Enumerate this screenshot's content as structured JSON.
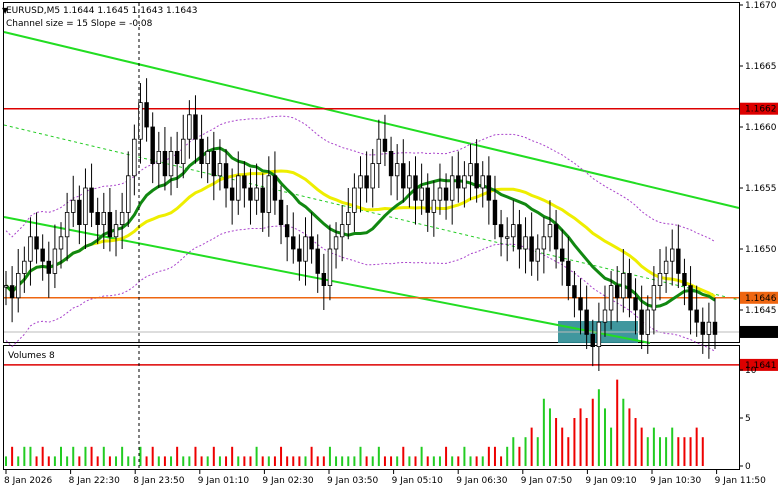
{
  "header": {
    "title": "EURUSD,M5  1.1644 1.1645 1.1643 1.1643",
    "indicator": "Channel size = 15 Slope = -0.08",
    "volumes_label": "Volumes 8"
  },
  "colors": {
    "bull_candle": "#ffffff",
    "bear_candle": "#000000",
    "channel": "#22dd22",
    "channel_mid": "#22cc22",
    "ma_fast": "#118811",
    "ma_slow": "#eeee00",
    "envelope": "#aa44cc",
    "resistance": "#dd0000",
    "support_level": "#ee6611",
    "zone": "#2b8c94",
    "volume_up": "#22cc22",
    "volume_down": "#ee0000"
  },
  "chart_data": {
    "type": "candlestick",
    "symbol": "EURUSD",
    "timeframe": "M5",
    "ylim": [
      1.164,
      1.167
    ],
    "y_ticks": [
      "1.1670",
      "1.1665",
      "1.1660",
      "1.1655",
      "1.1650",
      "1.1645"
    ],
    "x_ticks": [
      "8 Jan 2026",
      "8 Jan 22:30",
      "8 Jan 23:50",
      "9 Jan 01:10",
      "9 Jan 02:30",
      "9 Jan 03:50",
      "9 Jan 05:10",
      "9 Jan 06:30",
      "9 Jan 07:50",
      "9 Jan 09:10",
      "9 Jan 10:30",
      "9 Jan 11:50"
    ],
    "levels": [
      {
        "label": "1.1662",
        "value": 1.16615,
        "kind": "resistance"
      },
      {
        "label": "1.1646",
        "value": 1.1646,
        "kind": "support"
      },
      {
        "label": "1.1641",
        "value": 1.16405,
        "kind": "resistance"
      }
    ],
    "current_price": {
      "label": "1.1643",
      "value": 1.16432
    },
    "volume_ticks": [
      "10",
      "5",
      "0"
    ],
    "volume_ylim": [
      0,
      10
    ],
    "closes": [
      1.1647,
      1.1646,
      1.1648,
      1.1649,
      1.1651,
      1.165,
      1.1649,
      1.1648,
      1.165,
      1.1651,
      1.1653,
      1.1654,
      1.1652,
      1.1655,
      1.1653,
      1.1652,
      1.1653,
      1.1651,
      1.1652,
      1.1653,
      1.1656,
      1.1659,
      1.1662,
      1.166,
      1.1657,
      1.1658,
      1.1656,
      1.1658,
      1.1657,
      1.1659,
      1.1661,
      1.1659,
      1.1657,
      1.1658,
      1.1656,
      1.1657,
      1.1655,
      1.1654,
      1.1656,
      1.1655,
      1.1654,
      1.1655,
      1.1653,
      1.1656,
      1.1654,
      1.1652,
      1.1651,
      1.165,
      1.1649,
      1.1651,
      1.165,
      1.1648,
      1.1647,
      1.165,
      1.1651,
      1.1652,
      1.1653,
      1.1655,
      1.1656,
      1.1655,
      1.1657,
      1.1659,
      1.1658,
      1.1656,
      1.1657,
      1.1655,
      1.1656,
      1.1654,
      1.1655,
      1.1653,
      1.1654,
      1.1655,
      1.1654,
      1.1656,
      1.1655,
      1.1656,
      1.1657,
      1.1655,
      1.1656,
      1.1654,
      1.1652,
      1.1651,
      1.1651,
      1.1652,
      1.165,
      1.1651,
      1.1649,
      1.165,
      1.1651,
      1.1652,
      1.165,
      1.1649,
      1.1647,
      1.1646,
      1.1645,
      1.1643,
      1.1642,
      1.1644,
      1.1645,
      1.1647,
      1.1646,
      1.1648,
      1.1646,
      1.1645,
      1.1643,
      1.1645,
      1.1647,
      1.1648,
      1.1649,
      1.165,
      1.1648,
      1.1647,
      1.1645,
      1.1644,
      1.1643,
      1.1644,
      1.1643
    ],
    "volumes": [
      1,
      2,
      1,
      2,
      2,
      1,
      2,
      1,
      1,
      2,
      1,
      2,
      1,
      2,
      2,
      1,
      2,
      1,
      1,
      2,
      1,
      1,
      2,
      1,
      2,
      1,
      1,
      1,
      2,
      1,
      1,
      2,
      1,
      1,
      2,
      1,
      1,
      2,
      1,
      1,
      1,
      2,
      1,
      1,
      1,
      2,
      1,
      1,
      1,
      1,
      2,
      1,
      1,
      2,
      1,
      1,
      1,
      1,
      2,
      1,
      1,
      2,
      1,
      1,
      1,
      2,
      1,
      1,
      2,
      1,
      1,
      1,
      2,
      1,
      1,
      2,
      1,
      1,
      1,
      2,
      2,
      1,
      2,
      3,
      2,
      3,
      4,
      3,
      7,
      6,
      5,
      4,
      3,
      5,
      6,
      5,
      7,
      8,
      6,
      4,
      9,
      7,
      6,
      5,
      4,
      3,
      4,
      3,
      3,
      4,
      3,
      3,
      3,
      4,
      3
    ]
  }
}
